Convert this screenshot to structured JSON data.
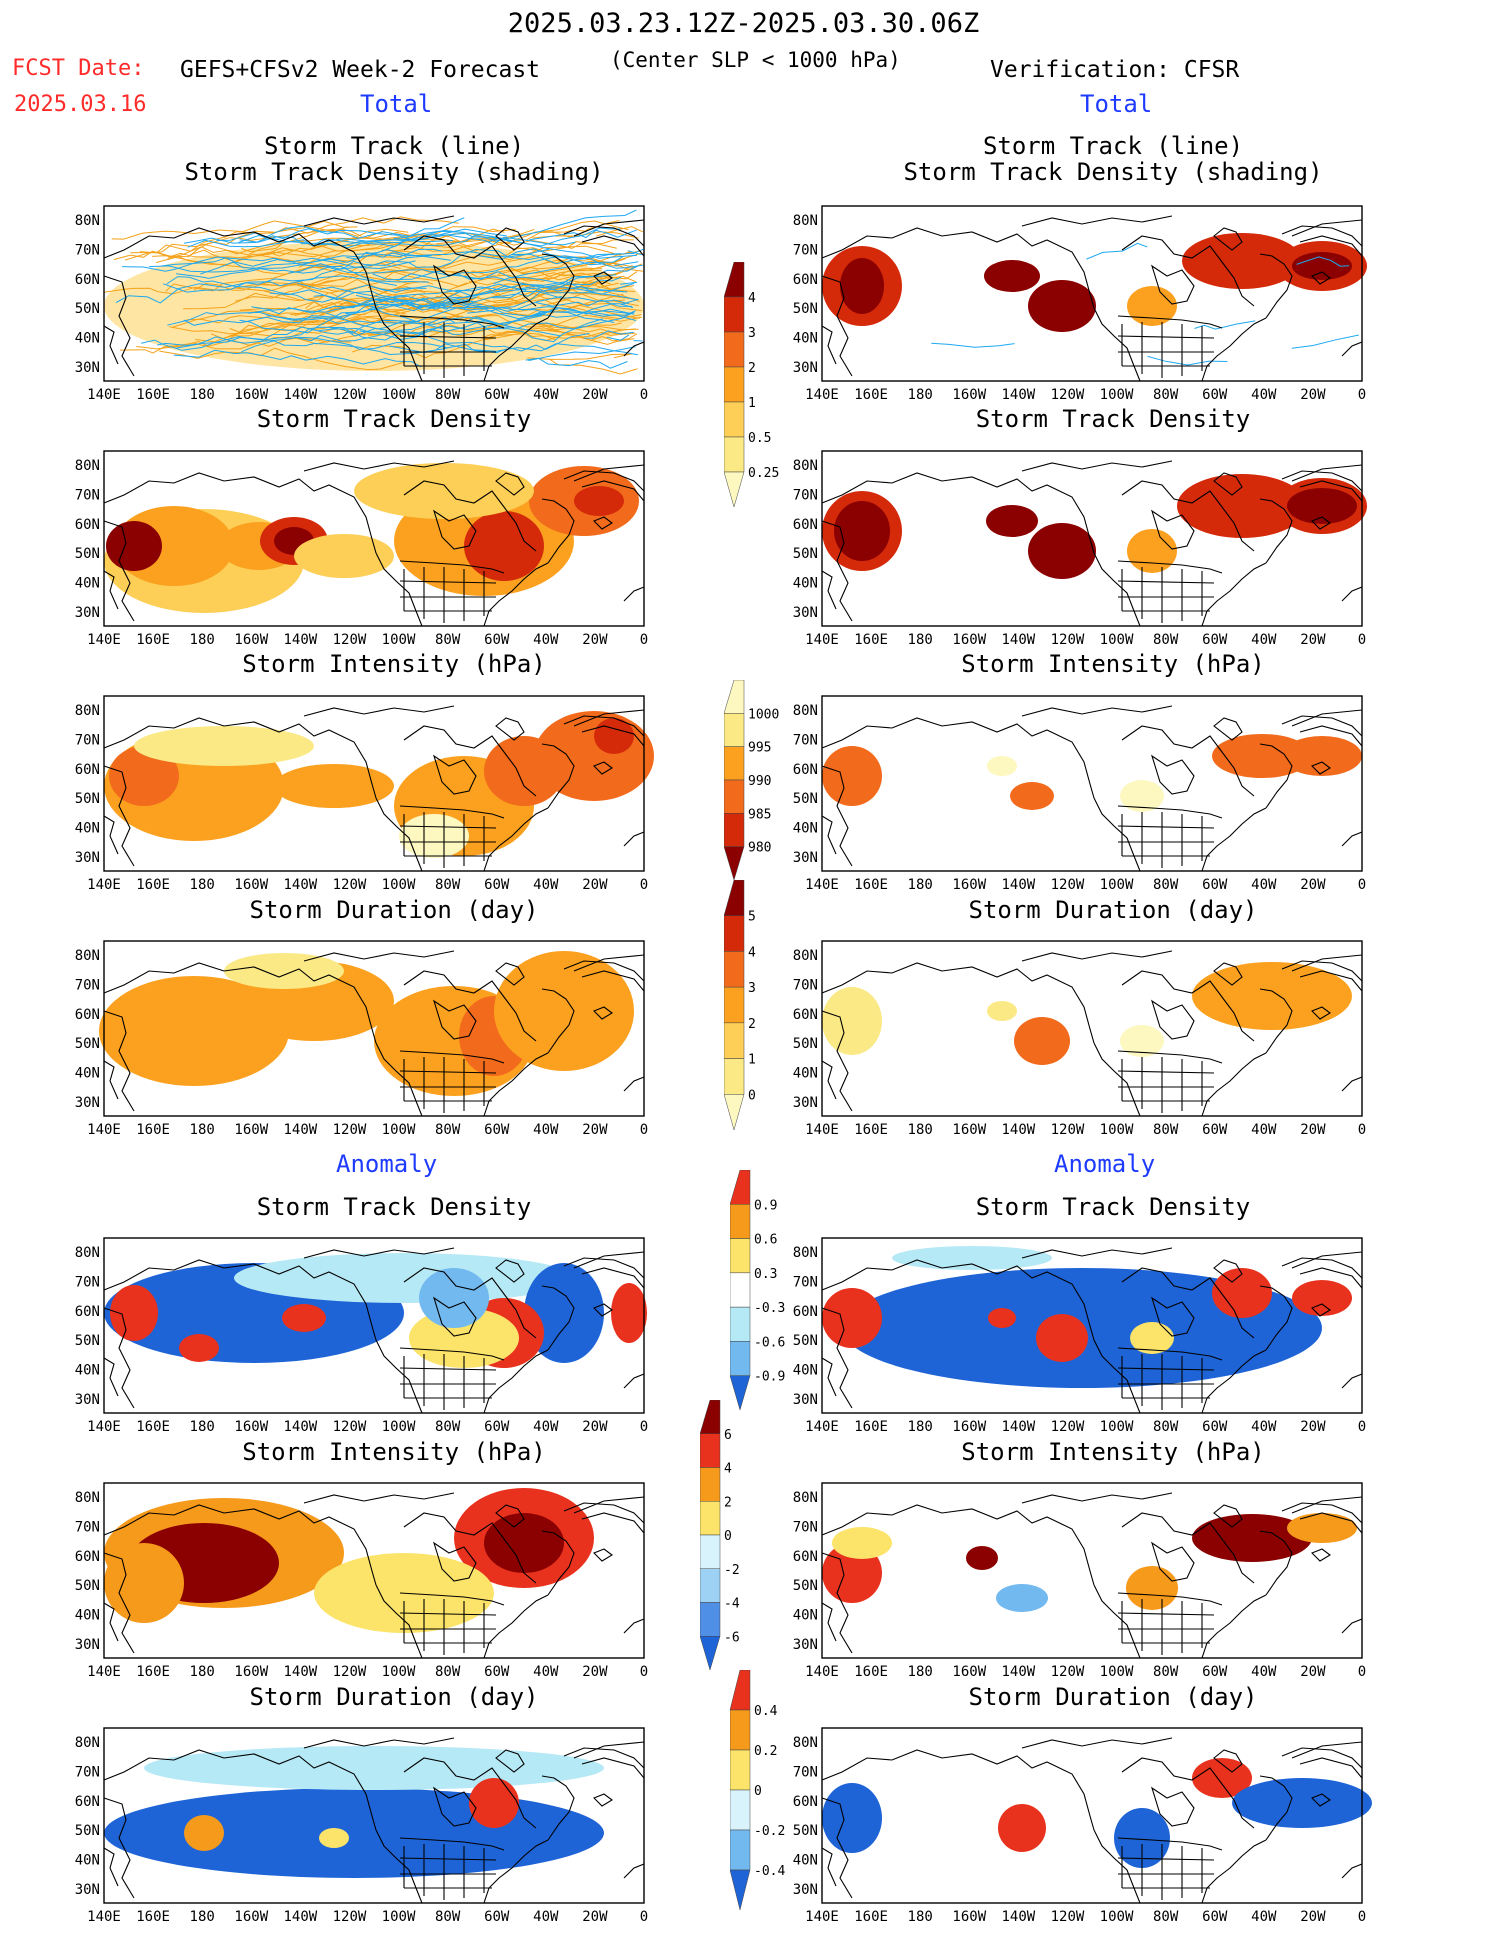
{
  "header": {
    "title": "2025.03.23.12Z-2025.03.30.06Z",
    "fcst_label": "FCST Date:",
    "fcst_date": "2025.03.16",
    "model": "GEFS+CFSv2 Week-2 Forecast",
    "slp_note": "(Center SLP < 1000 hPa)",
    "verification": "Verification: CFSR"
  },
  "sections": {
    "total": "Total",
    "anomaly": "Anomaly"
  },
  "panel_titles": {
    "track_line": "Storm Track (line)",
    "track_density_shading": "Storm Track Density (shading)",
    "track_density": "Storm Track Density",
    "intensity": "Storm Intensity (hPa)",
    "duration": "Storm Duration (day)"
  },
  "map_axes": {
    "lat_labels": [
      "80N",
      "70N",
      "60N",
      "50N",
      "40N",
      "30N"
    ],
    "lon_labels": [
      "140E",
      "160E",
      "180",
      "160W",
      "140W",
      "120W",
      "100W",
      "80W",
      "60W",
      "40W",
      "20W",
      "0"
    ]
  },
  "colorbars": {
    "density_total": {
      "ticks": [
        "4",
        "3",
        "2",
        "1",
        "0.5",
        "0.25"
      ],
      "colors": [
        "#8b0000",
        "#d42a0a",
        "#f26a1b",
        "#fba11f",
        "#fdcf57",
        "#fbe986",
        "#fdf7c0"
      ]
    },
    "intensity_total": {
      "ticks": [
        "1000",
        "995",
        "990",
        "985",
        "980"
      ],
      "colors": [
        "#fdf7c0",
        "#fbe986",
        "#fba11f",
        "#f26a1b",
        "#d42a0a",
        "#8b0000"
      ]
    },
    "duration_total": {
      "ticks": [
        "5",
        "4",
        "3",
        "2",
        "1",
        "0"
      ],
      "colors": [
        "#8b0000",
        "#d42a0a",
        "#f26a1b",
        "#fba11f",
        "#fdcf57",
        "#fbe986",
        "#fdf7c0"
      ]
    },
    "density_anom": {
      "ticks": [
        "0.9",
        "0.6",
        "0.3",
        "-0.3",
        "-0.6",
        "-0.9"
      ],
      "colors": [
        "#e8321e",
        "#f69a1c",
        "#fce36a",
        "#ffffff",
        "#b6e9f6",
        "#72b9f0",
        "#1e64d6"
      ]
    },
    "intensity_anom": {
      "ticks": [
        "6",
        "4",
        "2",
        "0",
        "-2",
        "-4",
        "-6"
      ],
      "colors": [
        "#8b0000",
        "#e8321e",
        "#f69a1c",
        "#fce36a",
        "#d8f3fb",
        "#9ed2f5",
        "#4f8fe6",
        "#1e64d6"
      ]
    },
    "duration_anom": {
      "ticks": [
        "0.4",
        "0.2",
        "0",
        "-0.2",
        "-0.4"
      ],
      "colors": [
        "#e8321e",
        "#f69a1c",
        "#fce36a",
        "#d8f3fb",
        "#72b9f0",
        "#1e64d6"
      ]
    }
  },
  "palette": {
    "land_outline": "#000000",
    "ensemble_track": "#f4a21a",
    "observed_track": "#1ea8f0",
    "section_label": "#1d3bff",
    "fcst_date": "#ff2a2a"
  }
}
